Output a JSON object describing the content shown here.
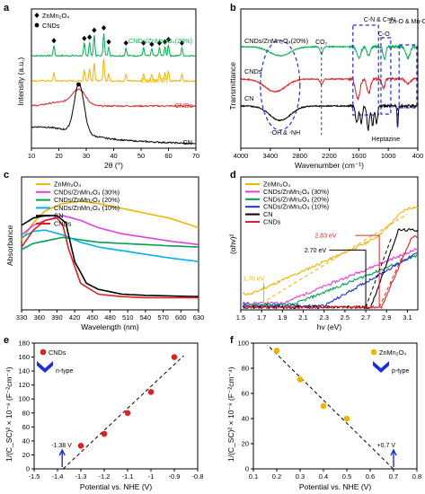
{
  "chart_data": [
    {
      "panel": "a",
      "type": "line",
      "xlabel": "2θ (°)",
      "ylabel": "Intensity (a.u.)",
      "xlim": [
        10,
        70
      ],
      "xticks": [
        10,
        20,
        30,
        40,
        50,
        60,
        70
      ],
      "legend": [
        {
          "name": "ZnMn₂O₄",
          "marker": "diamond"
        },
        {
          "name": "CNDs",
          "marker": "circle"
        }
      ],
      "series": [
        {
          "name": "CNDs/ZnMn₂O₄(20%)",
          "color": "#00b050",
          "offset": 3,
          "peaks": [
            [
              18.2,
              0.45
            ],
            [
              29.3,
              0.55
            ],
            [
              31.2,
              0.6
            ],
            [
              32.9,
              0.9
            ],
            [
              36.4,
              1.0
            ],
            [
              38.2,
              0.4
            ],
            [
              44.5,
              0.35
            ],
            [
              50.9,
              0.35
            ],
            [
              53.9,
              0.3
            ],
            [
              56.7,
              0.35
            ],
            [
              58.7,
              0.4
            ],
            [
              60.0,
              0.5
            ],
            [
              64.9,
              0.35
            ]
          ]
        },
        {
          "name": "ZnMn₂O₄",
          "color": "#f0b400",
          "offset": 2,
          "peaks": [
            [
              18.2,
              0.35
            ],
            [
              29.3,
              0.5
            ],
            [
              31.2,
              0.55
            ],
            [
              32.9,
              0.8
            ],
            [
              36.4,
              1.0
            ],
            [
              38.2,
              0.3
            ],
            [
              44.5,
              0.3
            ],
            [
              50.9,
              0.3
            ],
            [
              53.9,
              0.3
            ],
            [
              56.7,
              0.35
            ],
            [
              58.7,
              0.35
            ],
            [
              60.0,
              0.45
            ],
            [
              64.9,
              0.3
            ]
          ]
        },
        {
          "name": "CNDs",
          "color": "#e02020",
          "offset": 1,
          "peaks": [
            [
              27.2,
              0.6
            ]
          ]
        },
        {
          "name": "CN",
          "color": "#000000",
          "offset": 0,
          "peaks": [
            [
              27.4,
              1.2
            ]
          ]
        }
      ],
      "labels": [
        "CNDs/ZnMn₂O₄(20%)",
        "ZnMn₂O₄",
        "CNDs",
        "CN"
      ]
    },
    {
      "panel": "b",
      "type": "line",
      "xlabel": "Wavenumber (cm⁻¹)",
      "ylabel": "Transmittance",
      "xlim": [
        4000,
        400
      ],
      "xticks": [
        4000,
        3400,
        2800,
        2200,
        1600,
        1000,
        400
      ],
      "series": [
        "CNDs/ZnMn₂O₄(20%)",
        "CNDs",
        "CN"
      ],
      "annotations": [
        "CO₂",
        "C-N  & C=N",
        "C-O",
        "Zn-O & Mn-O",
        "-OH & -NH",
        "Heptazine"
      ]
    },
    {
      "panel": "c",
      "type": "line",
      "xlabel": "Wavelength  (nm)",
      "ylabel": "Absorbance",
      "xlim": [
        330,
        630
      ],
      "xticks": [
        330,
        360,
        390,
        420,
        450,
        480,
        510,
        540,
        570,
        600,
        630
      ],
      "series": [
        {
          "name": "ZnMn₂O₄",
          "color": "#f0b400",
          "x": [
            330,
            350,
            370,
            400,
            430,
            460,
            500,
            540,
            580,
            630
          ],
          "y": [
            0.58,
            0.72,
            0.82,
            0.88,
            0.9,
            0.88,
            0.84,
            0.8,
            0.76,
            0.68
          ]
        },
        {
          "name": "CNDs/ZnMn₂O₄ (30%)",
          "color": "#e040e0",
          "x": [
            330,
            350,
            370,
            400,
            430,
            460,
            500,
            540,
            580,
            630
          ],
          "y": [
            0.62,
            0.7,
            0.74,
            0.78,
            0.74,
            0.68,
            0.63,
            0.6,
            0.57,
            0.54
          ]
        },
        {
          "name": "CNDs/ZnMn₂O₄ (20%)",
          "color": "#00a050",
          "x": [
            330,
            350,
            370,
            400,
            430,
            460,
            500,
            540,
            580,
            630
          ],
          "y": [
            0.5,
            0.55,
            0.57,
            0.6,
            0.58,
            0.56,
            0.55,
            0.54,
            0.53,
            0.52
          ]
        },
        {
          "name": "CNDs/ZnMn₂O₄ (10%)",
          "color": "#00b0f0",
          "x": [
            330,
            350,
            370,
            400,
            430,
            460,
            500,
            540,
            580,
            630
          ],
          "y": [
            0.6,
            0.65,
            0.66,
            0.62,
            0.56,
            0.52,
            0.49,
            0.46,
            0.43,
            0.4
          ]
        },
        {
          "name": "CN",
          "color": "#000000",
          "x": [
            330,
            350,
            370,
            390,
            405,
            420,
            440,
            460,
            500,
            540,
            630
          ],
          "y": [
            0.7,
            0.76,
            0.78,
            0.78,
            0.72,
            0.4,
            0.22,
            0.17,
            0.13,
            0.12,
            0.11
          ]
        },
        {
          "name": "CNDs",
          "color": "#e02020",
          "x": [
            330,
            350,
            370,
            390,
            400,
            410,
            430,
            460,
            500,
            540,
            630
          ],
          "y": [
            0.52,
            0.66,
            0.74,
            0.76,
            0.7,
            0.5,
            0.22,
            0.13,
            0.11,
            0.1,
            0.1
          ]
        }
      ],
      "ylim": [
        0,
        1.1
      ]
    },
    {
      "panel": "d",
      "type": "line",
      "xlabel": "hv (eV)",
      "ylabel": "(αhv)²",
      "xlim": [
        1.5,
        3.2
      ],
      "xticks": [
        1.5,
        1.7,
        1.9,
        2.1,
        2.3,
        2.5,
        2.7,
        2.9,
        3.1
      ],
      "series": [
        "ZnMn₂O₄",
        "CNDs/ZnMn₂O₄ (30%)",
        "CNDs/ZnMn₂O₄ (20%)",
        "CNDs/ZnMn₂O₄ (10%)",
        "CN",
        "CNDs"
      ],
      "annotations": [
        "2.83 eV",
        "2.70 eV",
        "1.70 eV"
      ]
    },
    {
      "panel": "e",
      "type": "scatter",
      "xlabel": "Potential vs. NHE (V)",
      "ylabel": "1/(C_SC)² × 10⁻⁹ (F⁻²cm⁻⁴)",
      "xlim": [
        -1.5,
        -0.8
      ],
      "ylim": [
        0,
        180
      ],
      "xticks": [
        -1.5,
        -1.4,
        -1.3,
        -1.2,
        -1.1,
        -1.0,
        -0.9,
        -0.8
      ],
      "yticks": [
        0,
        20,
        40,
        60,
        80,
        100,
        120,
        140,
        160,
        180
      ],
      "x": [
        -1.3,
        -1.2,
        -1.1,
        -1.0,
        -0.9
      ],
      "y": [
        33,
        50,
        80,
        110,
        160
      ],
      "series_name": "CNDs",
      "color": "#e02020",
      "badge": "n-type",
      "annotation": "-1.38 V"
    },
    {
      "panel": "f",
      "type": "scatter",
      "xlabel": "Potential vs. NHE (V)",
      "ylabel": "1/(C_SC)² × 10⁻⁹ (F⁻²cm⁻⁴)",
      "xlim": [
        0.1,
        0.8
      ],
      "ylim": [
        0,
        100
      ],
      "xticks": [
        0.1,
        0.2,
        0.3,
        0.4,
        0.5,
        0.6,
        0.7,
        0.8
      ],
      "yticks": [
        0,
        20,
        40,
        60,
        80,
        100
      ],
      "x": [
        0.2,
        0.3,
        0.4,
        0.5
      ],
      "y": [
        94,
        71,
        50,
        40
      ],
      "series_name": "ZnMn₂O₄",
      "color": "#f0b400",
      "badge": "p-type",
      "annotation": "+0.7 V"
    }
  ]
}
